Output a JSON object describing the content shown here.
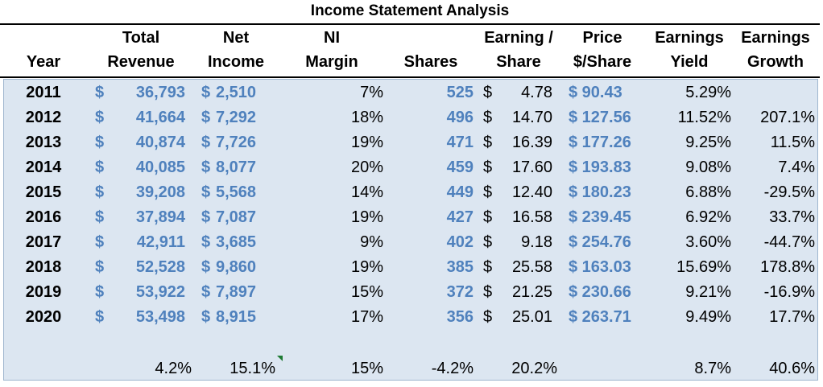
{
  "title": "Income Statement Analysis",
  "headers": {
    "year": "Year",
    "total_revenue": [
      "Total",
      "Revenue"
    ],
    "net_income": [
      "Net",
      "Income"
    ],
    "ni_margin": [
      "NI",
      "Margin"
    ],
    "shares": "Shares",
    "earning_share": [
      "Earning /",
      "Share"
    ],
    "price_share": [
      "Price",
      "$/Share"
    ],
    "earnings_yield": [
      "Earnings",
      "Yield"
    ],
    "earnings_growth": [
      "Earnings",
      "Growth"
    ]
  },
  "rows": [
    {
      "year": "2011",
      "rev": "36,793",
      "ni": "2,510",
      "margin": "7%",
      "shares": "525",
      "eps": "4.78",
      "price": "$  90.43",
      "yield": "5.29%",
      "growth": ""
    },
    {
      "year": "2012",
      "rev": "41,664",
      "ni": "7,292",
      "margin": "18%",
      "shares": "496",
      "eps": "14.70",
      "price": "$ 127.56",
      "yield": "11.52%",
      "growth": "207.1%"
    },
    {
      "year": "2013",
      "rev": "40,874",
      "ni": "7,726",
      "margin": "19%",
      "shares": "471",
      "eps": "16.39",
      "price": "$ 177.26",
      "yield": "9.25%",
      "growth": "11.5%"
    },
    {
      "year": "2014",
      "rev": "40,085",
      "ni": "8,077",
      "margin": "20%",
      "shares": "459",
      "eps": "17.60",
      "price": "$ 193.83",
      "yield": "9.08%",
      "growth": "7.4%"
    },
    {
      "year": "2015",
      "rev": "39,208",
      "ni": "5,568",
      "margin": "14%",
      "shares": "449",
      "eps": "12.40",
      "price": "$ 180.23",
      "yield": "6.88%",
      "growth": "-29.5%"
    },
    {
      "year": "2016",
      "rev": "37,894",
      "ni": "7,087",
      "margin": "19%",
      "shares": "427",
      "eps": "16.58",
      "price": "$ 239.45",
      "yield": "6.92%",
      "growth": "33.7%"
    },
    {
      "year": "2017",
      "rev": "42,911",
      "ni": "3,685",
      "margin": "9%",
      "shares": "402",
      "eps": "9.18",
      "price": "$ 254.76",
      "yield": "3.60%",
      "growth": "-44.7%"
    },
    {
      "year": "2018",
      "rev": "52,528",
      "ni": "9,860",
      "margin": "19%",
      "shares": "385",
      "eps": "25.58",
      "price": "$ 163.03",
      "yield": "15.69%",
      "growth": "178.8%"
    },
    {
      "year": "2019",
      "rev": "53,922",
      "ni": "7,897",
      "margin": "15%",
      "shares": "372",
      "eps": "21.25",
      "price": "$ 230.66",
      "yield": "9.21%",
      "growth": "-16.9%"
    },
    {
      "year": "2020",
      "rev": "53,498",
      "ni": "8,915",
      "margin": "17%",
      "shares": "356",
      "eps": "25.01",
      "price": "$ 263.71",
      "yield": "9.49%",
      "growth": "17.7%"
    }
  ],
  "currency_symbol": "$",
  "summary": {
    "rev": "4.2%",
    "ni": "15.1%",
    "margin": "15%",
    "shares": "-4.2%",
    "eps": "20.2%",
    "yield": "8.7%",
    "growth": "40.6%"
  },
  "colors": {
    "input_blue": "#4f81bd",
    "body_fill": "#dce6f1",
    "comment_flag": "#1e7b34"
  }
}
